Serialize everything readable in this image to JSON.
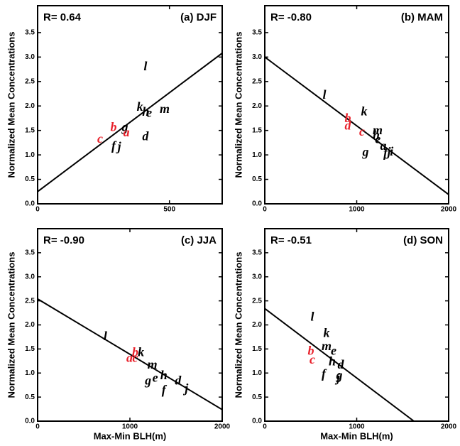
{
  "chart_data": [
    {
      "type": "scatter",
      "title": "(a) DJF",
      "annotation": "R=  0.64",
      "ylabel": "Normalized Mean Concentrations",
      "xlim": [
        0,
        700
      ],
      "ylim": [
        0,
        4.05
      ],
      "xticks": [
        0,
        500
      ],
      "yticks": [
        {
          "value": 0,
          "label": "0.0"
        },
        {
          "value": 0.5,
          "label": "0.5"
        },
        {
          "value": 1,
          "label": "1.0"
        },
        {
          "value": 1.5,
          "label": "1.5"
        },
        {
          "value": 2,
          "label": "2.0"
        },
        {
          "value": 2.5,
          "label": "2.5"
        },
        {
          "value": 3,
          "label": "3.0"
        },
        {
          "value": 3.5,
          "label": "3.5"
        }
      ],
      "labels": [
        "l",
        "k",
        "m",
        "e",
        "h",
        "d",
        "g",
        "a",
        "b",
        "c",
        "f",
        "j"
      ],
      "x": [
        409,
        388,
        482,
        423,
        410,
        409,
        331,
        337,
        288,
        237,
        288,
        310
      ],
      "y": [
        2.79,
        1.96,
        1.92,
        1.84,
        1.86,
        1.36,
        1.55,
        1.44,
        1.55,
        1.31,
        1.16,
        1.15
      ],
      "colors": [
        "#000",
        "#000",
        "#000",
        "#000",
        "#000",
        "#000",
        "#000",
        "#e8202a",
        "#e8202a",
        "#e8202a",
        "#000",
        "#000"
      ],
      "line_x": [
        0,
        700
      ],
      "line_y": [
        0.25,
        3.08
      ]
    },
    {
      "type": "scatter",
      "title": "(b) MAM",
      "annotation": "R= -0.80",
      "ylabel": "Normalized Mean Concentrations",
      "xlim": [
        0,
        2000
      ],
      "ylim": [
        0,
        4.05
      ],
      "xticks": [
        0,
        1000,
        2000
      ],
      "yticks": [
        {
          "value": 0,
          "label": "0.0"
        },
        {
          "value": 0.5,
          "label": "0.5"
        },
        {
          "value": 1,
          "label": "1.0"
        },
        {
          "value": 1.5,
          "label": "1.5"
        },
        {
          "value": 2,
          "label": "2.0"
        },
        {
          "value": 2.5,
          "label": "2.5"
        },
        {
          "value": 3,
          "label": "3.0"
        },
        {
          "value": 3.5,
          "label": "3.5"
        }
      ],
      "labels": [
        "l",
        "k",
        "b",
        "d",
        "c",
        "m",
        "h",
        "e",
        "a",
        "g",
        "f",
        "j",
        "i"
      ],
      "x": [
        649,
        1081,
        903,
        903,
        1058,
        1228,
        1212,
        1230,
        1290,
        1097,
        1313,
        1351,
        1380
      ],
      "y": [
        2.21,
        1.87,
        1.73,
        1.58,
        1.45,
        1.48,
        1.38,
        1.3,
        1.16,
        1.04,
        1.02,
        1.04,
        1.05
      ],
      "colors": [
        "#000",
        "#000",
        "#e8202a",
        "#e8202a",
        "#e8202a",
        "#000",
        "#000",
        "#000",
        "#000",
        "#000",
        "#000",
        "#000",
        "#000"
      ],
      "line_x": [
        0,
        2000
      ],
      "line_y": [
        3.0,
        0.19
      ]
    },
    {
      "type": "scatter",
      "title": "(c) JJA",
      "annotation": "R= -0.90",
      "xlabel": "Max-Min BLH(m)",
      "ylabel": "Normalized Mean Concentrations",
      "xlim": [
        0,
        2000
      ],
      "ylim": [
        0,
        4
      ],
      "xticks": [
        0,
        1000,
        2000
      ],
      "yticks": [
        {
          "value": 0,
          "label": "0.0"
        },
        {
          "value": 0.5,
          "label": "0.5"
        },
        {
          "value": 1,
          "label": "1.0"
        },
        {
          "value": 1.5,
          "label": "1.5"
        },
        {
          "value": 2,
          "label": "2.0"
        },
        {
          "value": 2.5,
          "label": "2.5"
        },
        {
          "value": 3,
          "label": "3.0"
        },
        {
          "value": 3.5,
          "label": "3.5"
        }
      ],
      "labels": [
        "l",
        "b",
        "k",
        "a",
        "c",
        "m",
        "h",
        "e",
        "g",
        "f",
        "d",
        "j"
      ],
      "x": [
        734,
        1058,
        1120,
        996,
        1058,
        1243,
        1367,
        1274,
        1197,
        1367,
        1521,
        1614
      ],
      "y": [
        1.74,
        1.41,
        1.41,
        1.29,
        1.29,
        1.15,
        0.93,
        0.88,
        0.82,
        0.63,
        0.82,
        0.66
      ],
      "colors": [
        "#000",
        "#e8202a",
        "#000",
        "#e8202a",
        "#e8202a",
        "#000",
        "#000",
        "#000",
        "#000",
        "#000",
        "#000",
        "#000"
      ],
      "line_x": [
        0,
        2000
      ],
      "line_y": [
        2.54,
        0.24
      ]
    },
    {
      "type": "scatter",
      "title": "(d) SON",
      "annotation": "R= -0.51",
      "xlabel": "Max-Min BLH(m)",
      "ylabel": "Normalized Mean Concentrations",
      "xlim": [
        0,
        2000
      ],
      "ylim": [
        0,
        4
      ],
      "xticks": [
        0,
        1000,
        2000
      ],
      "yticks": [
        {
          "value": 0,
          "label": "0.0"
        },
        {
          "value": 0.5,
          "label": "0.5"
        },
        {
          "value": 1,
          "label": "1.0"
        },
        {
          "value": 1.5,
          "label": "1.5"
        },
        {
          "value": 2,
          "label": "2.0"
        },
        {
          "value": 2.5,
          "label": "2.5"
        },
        {
          "value": 3,
          "label": "3.0"
        },
        {
          "value": 3.5,
          "label": "3.5"
        }
      ],
      "labels": [
        "l",
        "k",
        "m",
        "e",
        "b",
        "c",
        "h",
        "d",
        "f",
        "g",
        "j"
      ],
      "x": [
        517,
        672,
        672,
        749,
        502,
        517,
        734,
        826,
        641,
        811,
        800
      ],
      "y": [
        2.15,
        1.81,
        1.54,
        1.44,
        1.44,
        1.26,
        1.22,
        1.15,
        0.96,
        0.93,
        0.88
      ],
      "colors": [
        "#000",
        "#000",
        "#000",
        "#000",
        "#e8202a",
        "#e8202a",
        "#000",
        "#000",
        "#000",
        "#000",
        "#000"
      ],
      "line_x": [
        0,
        1622
      ],
      "line_y": [
        2.34,
        0
      ]
    }
  ]
}
